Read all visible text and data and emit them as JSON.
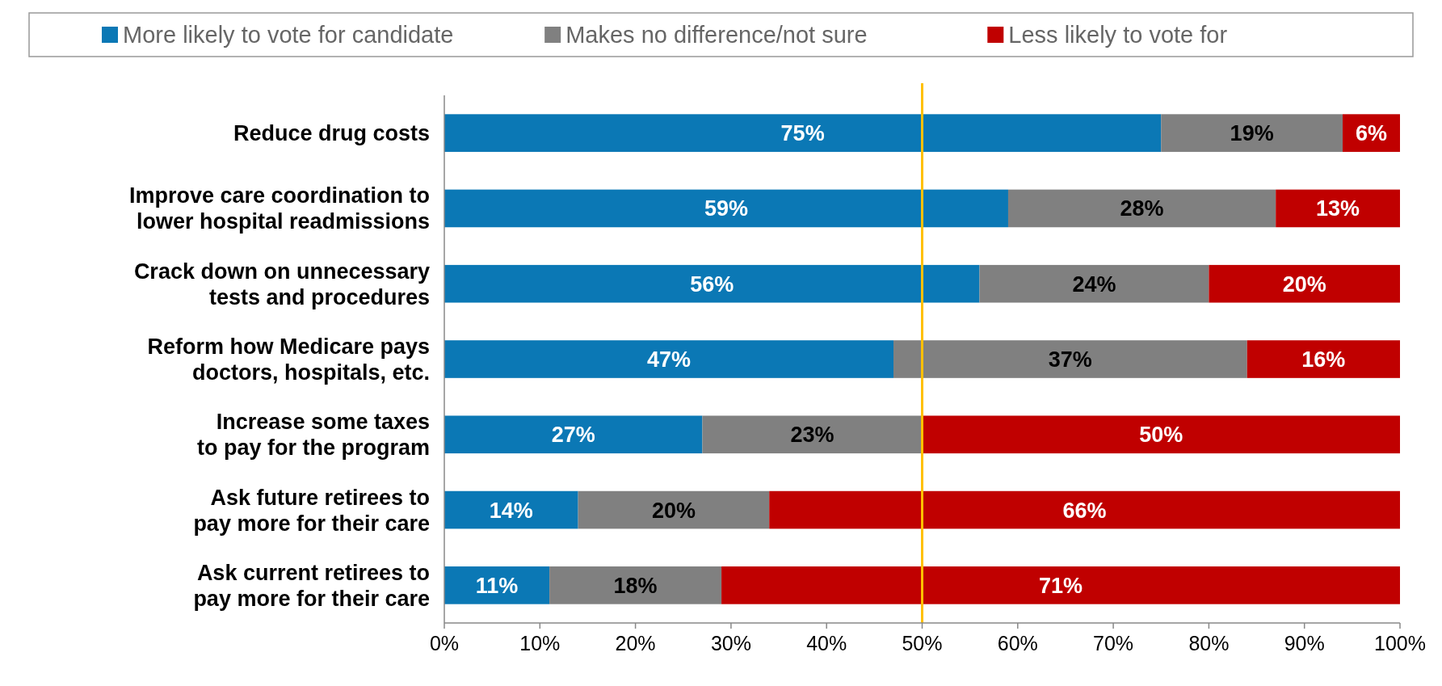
{
  "chart_data": {
    "type": "bar",
    "orientation": "horizontal",
    "stacked": true,
    "categories": [
      "Reduce drug costs",
      "Improve care coordination to lower hospital readmissions",
      "Crack down on unnecessary tests and procedures",
      "Reform how Medicare pays doctors, hospitals, etc.",
      "Increase some taxes to pay for the program",
      "Ask future retirees to pay more for their care",
      "Ask current retirees to pay more for their care"
    ],
    "series": [
      {
        "name": "More likely to vote for candidate",
        "color": "#0b78b5",
        "values": [
          75,
          59,
          56,
          47,
          27,
          14,
          11
        ],
        "value_labels": [
          "75%",
          "59%",
          "56%",
          "47%",
          "27%",
          "14%",
          "11%"
        ]
      },
      {
        "name": "Makes no difference/not sure",
        "color": "#808080",
        "values": [
          19,
          28,
          24,
          37,
          23,
          20,
          18
        ],
        "value_labels": [
          "19%",
          "28%",
          "24%",
          "37%",
          "23%",
          "20%",
          "18%"
        ]
      },
      {
        "name": "Less likely to vote for",
        "color": "#c00000",
        "values": [
          6,
          13,
          20,
          16,
          50,
          66,
          71
        ],
        "value_labels": [
          "6%",
          "13%",
          "20%",
          "16%",
          "50%",
          "66%",
          "71%"
        ]
      }
    ],
    "xlim": [
      0,
      100
    ],
    "xticks": [
      {
        "value": 0,
        "label": "0%"
      },
      {
        "value": 10,
        "label": "10%"
      },
      {
        "value": 20,
        "label": "20%"
      },
      {
        "value": 30,
        "label": "30%"
      },
      {
        "value": 40,
        "label": "40%"
      },
      {
        "value": 50,
        "label": "50%"
      },
      {
        "value": 60,
        "label": "60%"
      },
      {
        "value": 70,
        "label": "70%"
      },
      {
        "value": 80,
        "label": "80%"
      },
      {
        "value": 90,
        "label": "90%"
      },
      {
        "value": 100,
        "label": "100%"
      }
    ],
    "ref_lines": [
      {
        "axis": "x",
        "value": 50,
        "color": "#ffc000"
      }
    ],
    "legend": "top"
  }
}
